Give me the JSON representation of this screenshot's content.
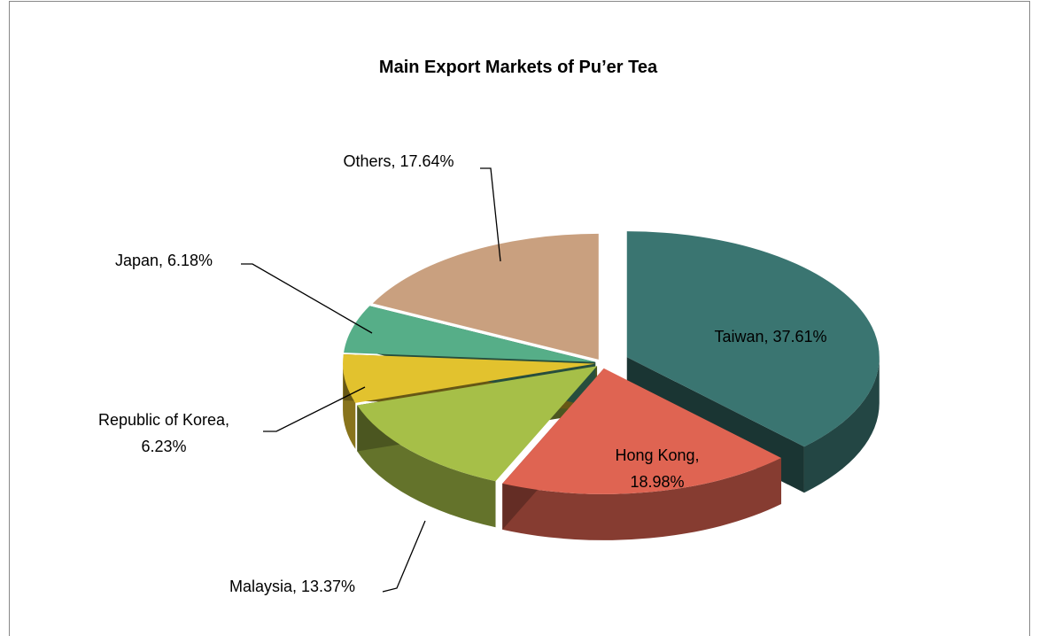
{
  "chart_data": {
    "type": "pie3d",
    "title": "Main Export Markets of Pu’er Tea",
    "labels": [
      "Taiwan, 37.61%",
      "Hong Kong, 18.98%",
      "Malaysia, 13.37%",
      "Republic of Korea, 6.23%",
      "Japan, 6.18%",
      "Others, 17.64%"
    ],
    "values": [
      37.61,
      18.98,
      13.37,
      6.23,
      6.18,
      17.64
    ],
    "colors": [
      "#3a7571",
      "#df6452",
      "#a6bf48",
      "#e2c22e",
      "#56ae88",
      "#c9a07f"
    ]
  }
}
